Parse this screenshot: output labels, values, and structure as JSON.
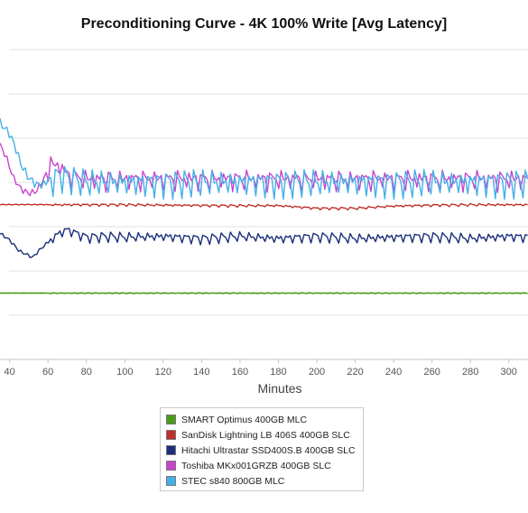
{
  "chart_data": {
    "type": "line",
    "title": "Preconditioning Curve - 4K 100% Write [Avg Latency]",
    "xlabel": "Minutes",
    "ylabel": "",
    "x_ticks": [
      40,
      60,
      80,
      100,
      120,
      140,
      160,
      180,
      200,
      220,
      240,
      260,
      280,
      300
    ],
    "xlim": [
      35,
      310
    ],
    "ylim": [
      0,
      7
    ],
    "grid": "horizontal",
    "legend_position": "bottom",
    "series": [
      {
        "name": "SMART Optimus 400GB MLC",
        "color": "#4a9a1a",
        "x": [
          35,
          100,
          200,
          300,
          310
        ],
        "y": [
          1.5,
          1.5,
          1.5,
          1.5,
          1.5
        ]
      },
      {
        "name": "SanDisk Lightning LB 406S 400GB SLC",
        "color": "#c0302a",
        "x": [
          35,
          60,
          100,
          150,
          180,
          190,
          200,
          220,
          240,
          260,
          280,
          300,
          310
        ],
        "y": [
          3.5,
          3.5,
          3.5,
          3.48,
          3.48,
          3.45,
          3.42,
          3.42,
          3.47,
          3.49,
          3.5,
          3.5,
          3.5
        ]
      },
      {
        "name": "Hitachi Ultrastar SSD400S.B 400GB SLC",
        "color": "#1a2e7a",
        "x": [
          35,
          40,
          45,
          50,
          52,
          55,
          60,
          65,
          70,
          80,
          90,
          100,
          120,
          140,
          160,
          180,
          200,
          220,
          240,
          260,
          280,
          300,
          310
        ],
        "y": [
          2.85,
          2.7,
          2.45,
          2.35,
          2.3,
          2.45,
          2.65,
          2.85,
          2.95,
          2.78,
          2.8,
          2.78,
          2.8,
          2.75,
          2.8,
          2.75,
          2.8,
          2.75,
          2.78,
          2.8,
          2.75,
          2.8,
          2.78
        ]
      },
      {
        "name": "Toshiba MKx001GRZB 400GB SLC",
        "color": "#cc44cc",
        "x": [
          35,
          38,
          42,
          46,
          50,
          54,
          58,
          62,
          66,
          70,
          80,
          100,
          150,
          200,
          250,
          300,
          310
        ],
        "y": [
          4.85,
          4.6,
          4.1,
          3.85,
          3.75,
          3.8,
          4.1,
          4.45,
          4.4,
          4.2,
          4.1,
          4.1,
          4.1,
          4.1,
          4.1,
          4.1,
          4.1
        ]
      },
      {
        "name": "STEC s840 800GB MLC",
        "color": "#44b0e8",
        "x": [
          35,
          38,
          40,
          43,
          46,
          50,
          54,
          58,
          62,
          66,
          70,
          80,
          100,
          150,
          200,
          250,
          300,
          310
        ],
        "y": [
          5.35,
          5.2,
          5.1,
          4.8,
          4.4,
          4.1,
          3.95,
          3.95,
          4.1,
          4.2,
          4.15,
          4.05,
          4.05,
          4.05,
          4.05,
          4.05,
          4.05,
          4.05
        ]
      }
    ]
  }
}
